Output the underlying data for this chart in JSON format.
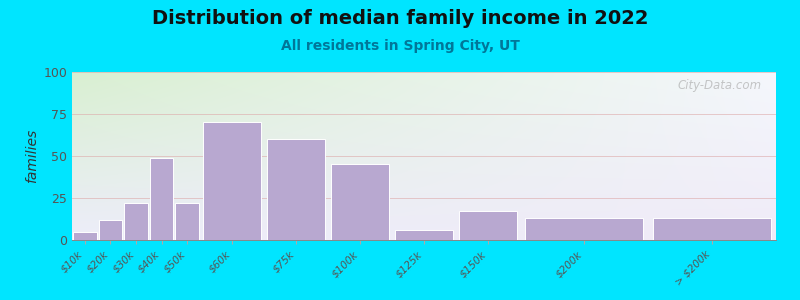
{
  "title": "Distribution of median family income in 2022",
  "subtitle": "All residents in Spring City, UT",
  "ylabel": "families",
  "categories": [
    "$10k",
    "$20k",
    "$30k",
    "$40k",
    "$50k",
    "$60k",
    "$75k",
    "$100k",
    "$125k",
    "$150k",
    "$200k",
    "> $200k"
  ],
  "bar_heights": [
    5,
    12,
    22,
    49,
    22,
    70,
    60,
    45,
    6,
    17,
    13,
    13
  ],
  "bar_lefts": [
    0,
    10,
    20,
    30,
    40,
    50,
    75,
    100,
    125,
    150,
    175,
    225
  ],
  "bar_widths": [
    10,
    10,
    10,
    10,
    10,
    25,
    25,
    25,
    25,
    25,
    50,
    50
  ],
  "xlim": [
    0,
    275
  ],
  "ylim": [
    0,
    100
  ],
  "yticks": [
    0,
    25,
    50,
    75,
    100
  ],
  "bar_color": "#b8a8d0",
  "bar_edge_color": "#ffffff",
  "background_outer": "#00e5ff",
  "title_fontsize": 14,
  "subtitle_fontsize": 10,
  "ylabel_fontsize": 10,
  "watermark": "City-Data.com"
}
